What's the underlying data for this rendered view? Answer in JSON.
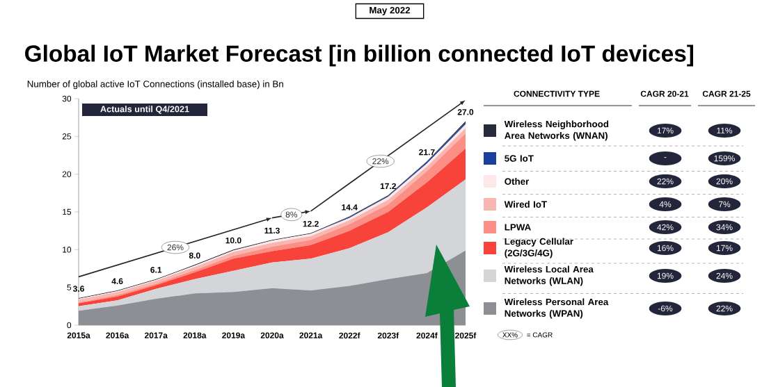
{
  "chart_data": {
    "type": "area",
    "title": "Global IoT Market Forecast [in billion connected IoT devices]",
    "ylabel": "Number of global active IoT Connections (installed base) in Bn",
    "legend_title": "CONNECTIVITY TYPE",
    "categories": [
      "2015a",
      "2016a",
      "2017a",
      "2018a",
      "2019a",
      "2020a",
      "2021a",
      "2022f",
      "2023f",
      "2024f",
      "2025f"
    ],
    "stacked": true,
    "legend": "right",
    "ylim": [
      0,
      30
    ],
    "yticks": [
      0,
      5,
      10,
      15,
      20,
      25,
      30
    ],
    "series": [
      {
        "name": "Wireless Personal Area Networks (WPAN)",
        "color": "#8e8f94",
        "values": [
          1.9,
          2.6,
          3.5,
          4.2,
          4.4,
          4.9,
          4.6,
          5.2,
          6.1,
          6.9,
          9.9
        ]
      },
      {
        "name": "Wireless Local Area Networks (WLAN)",
        "color": "#d4d5d8",
        "values": [
          0.6,
          0.7,
          1.3,
          1.9,
          2.8,
          3.4,
          4.2,
          5.0,
          6.2,
          8.7,
          9.4
        ]
      },
      {
        "name": "Legacy Cellular (2G/3G/4G)",
        "color": "#f8433a",
        "values": [
          0.4,
          0.5,
          0.5,
          0.9,
          1.6,
          1.5,
          1.8,
          2.3,
          2.7,
          3.3,
          4.1
        ]
      },
      {
        "name": "LPWA",
        "color": "#fb8f86",
        "values": [
          0.1,
          0.2,
          0.2,
          0.3,
          0.4,
          0.6,
          0.7,
          0.9,
          1.0,
          1.5,
          2.0
        ]
      },
      {
        "name": "Wired IoT",
        "color": "#f9b6b0",
        "values": [
          0.4,
          0.4,
          0.4,
          0.4,
          0.5,
          0.5,
          0.5,
          0.5,
          0.6,
          0.6,
          0.7
        ]
      },
      {
        "name": "Other",
        "color": "#fde8e8",
        "values": [
          0.1,
          0.1,
          0.1,
          0.2,
          0.2,
          0.3,
          0.3,
          0.3,
          0.4,
          0.4,
          0.5
        ]
      },
      {
        "name": "5G IoT",
        "color": "#1a3fa0",
        "values": [
          0,
          0,
          0,
          0,
          0,
          0,
          0,
          0.1,
          0.1,
          0.2,
          0.2
        ]
      },
      {
        "name": "Wireless Neighborhood Area Networks (WNAN)",
        "color": "#262a3b",
        "values": [
          0.1,
          0.1,
          0.1,
          0.1,
          0.1,
          0.1,
          0.1,
          0.1,
          0.1,
          0.1,
          0.2
        ]
      }
    ],
    "totals": [
      "3.6",
      "4.6",
      "6.1",
      "8.0",
      "10.0",
      "11.3",
      "12.2",
      "14.4",
      "17.2",
      "21.7",
      "27.0"
    ],
    "annotations": [
      "Actuals until Q4/2021",
      "26%",
      "8%",
      "22%",
      "CAGR 20-21",
      "CAGR 21-25",
      "17%",
      "11%",
      "-",
      "159%",
      "22%",
      "20%",
      "4%",
      "7%",
      "42%",
      "34%",
      "16%",
      "17%",
      "19%",
      "24%",
      "-6%",
      "22%",
      "XX%",
      "= CAGR",
      "May 2022"
    ]
  }
}
